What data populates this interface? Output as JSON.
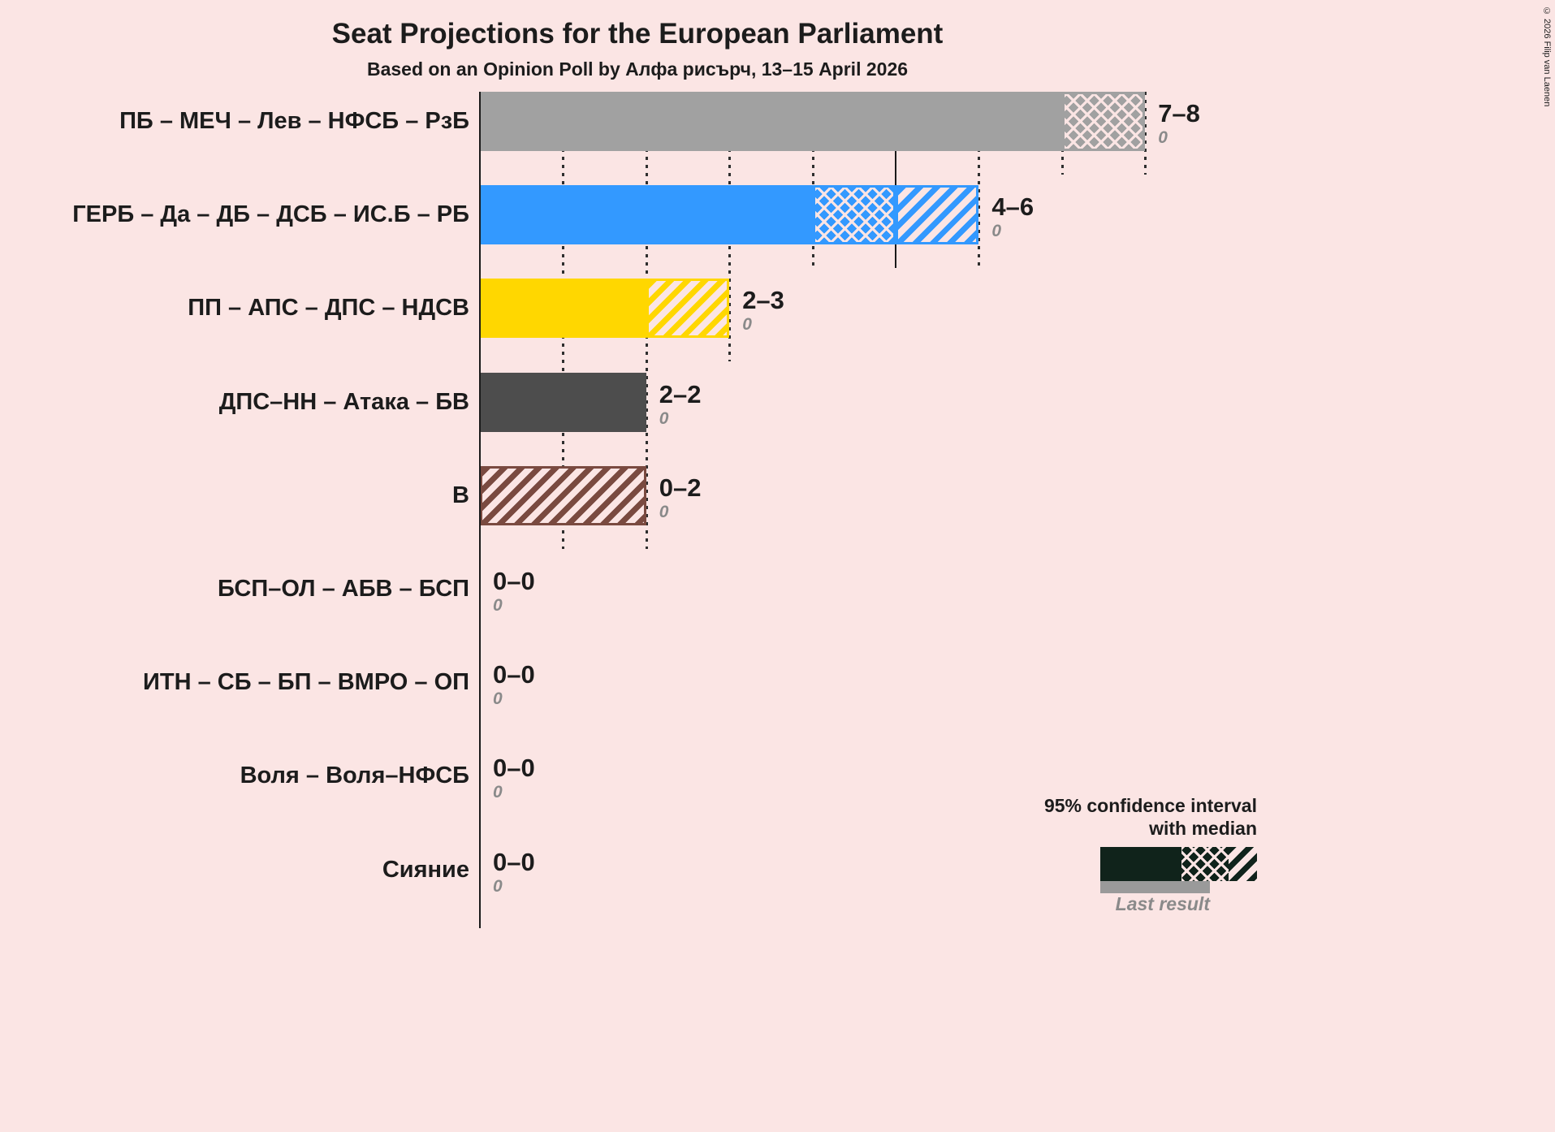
{
  "copyright": "© 2026 Filip van Laenen",
  "colors": {
    "background": "#fbe5e4",
    "text": "#1c1c1c",
    "muted_text": "#8a8a8a",
    "legend_bar": "#10231b",
    "last_result_bar": "#9a9a9a"
  },
  "legend": {
    "ci_line1": "95% confidence interval",
    "ci_line2": "with median",
    "last_result_label": "Last result"
  },
  "chart_data": {
    "type": "bar",
    "orientation": "horizontal",
    "title": "Seat Projections for the European Parliament",
    "subtitle": "Based on an Opinion Poll by Алфа рисърч, 13–15 April 2026",
    "unit": "seats",
    "x_axis": {
      "min": 0,
      "max": 8,
      "gridline_step": 1,
      "solid_gridline_at": 5
    },
    "parties": [
      {
        "label": "ПБ – МЕЧ – Лев – НФСБ – РзБ",
        "ci_low": 7,
        "median": 8,
        "ci_high": 8,
        "range_label": "7–8",
        "last_result": "0",
        "color": "#a1a1a1"
      },
      {
        "label": "ГЕРБ – Да – ДБ – ДСБ – ИС.Б – РБ",
        "ci_low": 4,
        "median": 5,
        "ci_high": 6,
        "range_label": "4–6",
        "last_result": "0",
        "color": "#3399ff"
      },
      {
        "label": "ПП – АПС – ДПС – НДСВ",
        "ci_low": 2,
        "median": 2,
        "ci_high": 3,
        "range_label": "2–3",
        "last_result": "0",
        "color": "#ffd700"
      },
      {
        "label": "ДПС–НН – Атака – БВ",
        "ci_low": 2,
        "median": 2,
        "ci_high": 2,
        "range_label": "2–2",
        "last_result": "0",
        "color": "#4d4d4d"
      },
      {
        "label": "В",
        "ci_low": 0,
        "median": 0,
        "ci_high": 2,
        "range_label": "0–2",
        "last_result": "0",
        "color": "#7a4a40"
      },
      {
        "label": "БСП–ОЛ – АБВ – БСП",
        "ci_low": 0,
        "median": 0,
        "ci_high": 0,
        "range_label": "0–0",
        "last_result": "0"
      },
      {
        "label": "ИТН – СБ – БП – ВМРО – ОП",
        "ci_low": 0,
        "median": 0,
        "ci_high": 0,
        "range_label": "0–0",
        "last_result": "0"
      },
      {
        "label": "Воля – Воля–НФСБ",
        "ci_low": 0,
        "median": 0,
        "ci_high": 0,
        "range_label": "0–0",
        "last_result": "0"
      },
      {
        "label": "Сияние",
        "ci_low": 0,
        "median": 0,
        "ci_high": 0,
        "range_label": "0–0",
        "last_result": "0"
      }
    ]
  }
}
